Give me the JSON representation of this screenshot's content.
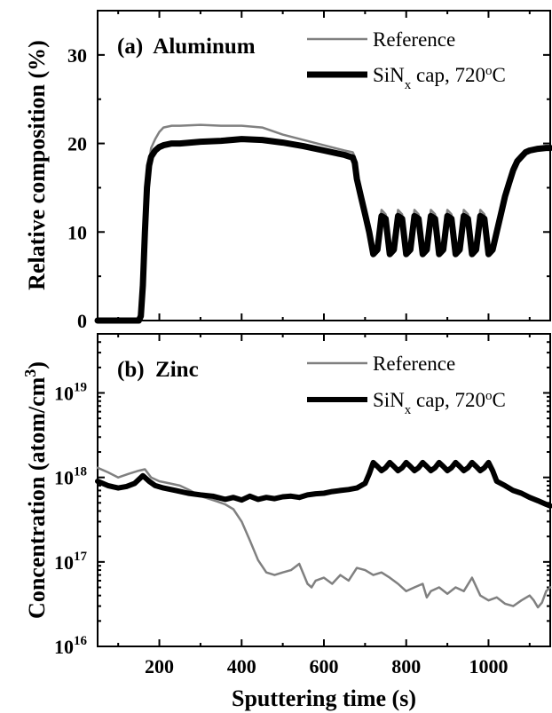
{
  "chart_data": [
    {
      "type": "line",
      "panel_label": "(a)  Aluminum",
      "ylabel": "Relative composition (%)",
      "xlim": [
        50,
        1150
      ],
      "ylim": [
        0,
        35
      ],
      "yscale": "linear",
      "y_ticks": [
        0,
        10,
        20,
        30
      ],
      "y_tick_labels": [
        "0",
        "10",
        "20",
        "30"
      ],
      "legend_position": "top-right",
      "series": [
        {
          "name": "Reference",
          "color": "#808080",
          "x": [
            50,
            100,
            140,
            150,
            155,
            160,
            165,
            170,
            175,
            180,
            190,
            200,
            210,
            230,
            250,
            300,
            350,
            400,
            450,
            500,
            550,
            600,
            650,
            670,
            675,
            680,
            690,
            700,
            710,
            720,
            730,
            740,
            750,
            760,
            770,
            780,
            790,
            800,
            810,
            820,
            830,
            840,
            850,
            860,
            870,
            880,
            890,
            900,
            910,
            920,
            930,
            940,
            950,
            960,
            970,
            980,
            990,
            1000,
            1010,
            1020,
            1030,
            1040,
            1050,
            1060,
            1070,
            1080,
            1090,
            1100,
            1120,
            1140,
            1150
          ],
          "y": [
            0,
            0,
            0,
            0,
            0.5,
            4,
            10,
            15,
            18,
            19.5,
            20.5,
            21.3,
            21.8,
            22,
            22,
            22.1,
            22,
            22,
            21.8,
            21,
            20.4,
            19.8,
            19.2,
            19,
            18.5,
            16,
            14,
            12,
            10,
            8,
            8.5,
            12.5,
            12,
            8,
            8.5,
            12.5,
            12,
            8,
            8.5,
            12.5,
            12,
            8,
            8.5,
            12.5,
            12,
            8,
            8.5,
            12.5,
            12,
            8,
            8.5,
            12.5,
            12,
            8,
            8.5,
            12.5,
            12,
            8,
            8.5,
            10,
            12,
            14,
            15.5,
            17,
            18,
            18.5,
            19,
            19.2,
            19.4,
            19.5,
            19.5
          ]
        },
        {
          "name": "SiNx cap, 720°C",
          "color": "#000000",
          "x": [
            50,
            100,
            140,
            150,
            155,
            160,
            165,
            170,
            175,
            180,
            190,
            200,
            210,
            230,
            250,
            300,
            350,
            400,
            450,
            500,
            550,
            600,
            650,
            670,
            675,
            680,
            690,
            700,
            710,
            720,
            730,
            740,
            750,
            760,
            770,
            780,
            790,
            800,
            810,
            820,
            830,
            840,
            850,
            860,
            870,
            880,
            890,
            900,
            910,
            920,
            930,
            940,
            950,
            960,
            970,
            980,
            990,
            1000,
            1010,
            1020,
            1030,
            1040,
            1050,
            1060,
            1070,
            1080,
            1090,
            1100,
            1120,
            1140,
            1150
          ],
          "y": [
            0,
            0,
            0,
            0,
            0.5,
            4,
            10,
            15,
            17.5,
            18.5,
            19.2,
            19.6,
            19.8,
            20,
            20,
            20.2,
            20.3,
            20.5,
            20.4,
            20.1,
            19.7,
            19.2,
            18.7,
            18.4,
            17.8,
            16,
            14,
            12,
            10,
            7.5,
            8,
            11.8,
            11.5,
            7.5,
            8,
            11.8,
            11.5,
            7.5,
            8,
            11.8,
            11.5,
            7.5,
            8,
            11.8,
            11.5,
            7.5,
            8,
            11.8,
            11.5,
            7.5,
            8,
            11.8,
            11.5,
            7.5,
            8,
            11.8,
            11.5,
            7.5,
            8,
            10,
            12,
            14,
            15.5,
            17,
            18,
            18.5,
            19,
            19.2,
            19.4,
            19.5,
            19.5
          ]
        }
      ]
    },
    {
      "type": "line",
      "panel_label": "(b)  Zinc",
      "xlabel": "Sputtering time (s)",
      "ylabel": "Concentration (atom/cm",
      "ylabel_superscript": "3",
      "ylabel_close": ")",
      "xlim": [
        50,
        1150
      ],
      "ylim": [
        1e+16,
        5e+19
      ],
      "yscale": "log",
      "x_ticks": [
        200,
        400,
        600,
        800,
        1000
      ],
      "x_tick_labels": [
        "200",
        "400",
        "600",
        "800",
        "1000"
      ],
      "y_ticks": [
        1e+16,
        1e+17,
        1e+18,
        1e+19
      ],
      "y_tick_labels": [
        {
          "base": "10",
          "exp": "16"
        },
        {
          "base": "10",
          "exp": "17"
        },
        {
          "base": "10",
          "exp": "18"
        },
        {
          "base": "10",
          "exp": "19"
        }
      ],
      "legend_position": "top-right",
      "series": [
        {
          "name": "Reference",
          "color": "#808080",
          "x": [
            50,
            75,
            100,
            125,
            150,
            165,
            180,
            200,
            225,
            250,
            275,
            300,
            325,
            340,
            360,
            380,
            400,
            420,
            440,
            460,
            480,
            500,
            520,
            540,
            560,
            570,
            580,
            600,
            620,
            640,
            660,
            680,
            700,
            720,
            740,
            760,
            780,
            800,
            820,
            840,
            850,
            860,
            880,
            900,
            920,
            940,
            960,
            980,
            1000,
            1020,
            1040,
            1060,
            1080,
            1100,
            1110,
            1120,
            1130,
            1140,
            1150
          ],
          "y": [
            1.3e+18,
            1.15e+18,
            1e+18,
            1.1e+18,
            1.2e+18,
            1.25e+18,
            1e+18,
            9e+17,
            8.5e+17,
            8e+17,
            7e+17,
            6e+17,
            5.5e+17,
            5.2e+17,
            4.8e+17,
            4.2e+17,
            3e+17,
            1.8e+17,
            1.05e+17,
            7.5e+16,
            7e+16,
            7.5e+16,
            8e+16,
            9.5e+16,
            5.5e+16,
            5e+16,
            6e+16,
            6.5e+16,
            5.5e+16,
            7e+16,
            6e+16,
            8.5e+16,
            8e+16,
            7e+16,
            7.5e+16,
            6.5e+16,
            5.5e+16,
            4.5e+16,
            5e+16,
            5.5e+16,
            3.8e+16,
            4.5e+16,
            5e+16,
            4.2e+16,
            5e+16,
            4.5e+16,
            6.5e+16,
            4e+16,
            3.5e+16,
            3.8e+16,
            3.2e+16,
            3e+16,
            3.5e+16,
            4e+16,
            3.5e+16,
            2.9e+16,
            3.3e+16,
            4.5e+16,
            5e+16
          ]
        },
        {
          "name": "SiNx cap, 720°C",
          "color": "#000000",
          "x": [
            50,
            75,
            100,
            120,
            140,
            160,
            175,
            190,
            210,
            240,
            270,
            300,
            330,
            360,
            380,
            400,
            420,
            440,
            460,
            480,
            500,
            520,
            540,
            560,
            580,
            600,
            620,
            640,
            660,
            680,
            700,
            710,
            720,
            730,
            740,
            750,
            760,
            770,
            780,
            790,
            800,
            810,
            820,
            830,
            840,
            850,
            860,
            870,
            880,
            890,
            900,
            910,
            920,
            930,
            940,
            950,
            960,
            970,
            980,
            990,
            1000,
            1010,
            1020,
            1040,
            1060,
            1080,
            1100,
            1120,
            1140,
            1150
          ],
          "y": [
            9e+17,
            8e+17,
            7.5e+17,
            7.8e+17,
            8.5e+17,
            1.05e+18,
            9e+17,
            8e+17,
            7.5e+17,
            7e+17,
            6.5e+17,
            6.2e+17,
            6e+17,
            5.5e+17,
            5.8e+17,
            5.4e+17,
            6e+17,
            5.5e+17,
            5.8e+17,
            5.6e+17,
            5.9e+17,
            6e+17,
            5.8e+17,
            6.2e+17,
            6.4e+17,
            6.5e+17,
            6.8e+17,
            7e+17,
            7.2e+17,
            7.5e+17,
            8.5e+17,
            1.1e+18,
            1.5e+18,
            1.35e+18,
            1.2e+18,
            1.3e+18,
            1.5e+18,
            1.35e+18,
            1.2e+18,
            1.3e+18,
            1.5e+18,
            1.35e+18,
            1.2e+18,
            1.3e+18,
            1.5e+18,
            1.35e+18,
            1.2e+18,
            1.3e+18,
            1.5e+18,
            1.35e+18,
            1.2e+18,
            1.3e+18,
            1.5e+18,
            1.35e+18,
            1.2e+18,
            1.3e+18,
            1.5e+18,
            1.35e+18,
            1.2e+18,
            1.3e+18,
            1.5e+18,
            1.2e+18,
            9e+17,
            8e+17,
            7e+17,
            6.5e+17,
            5.8e+17,
            5.3e+17,
            4.8e+17,
            4.6e+17
          ]
        }
      ]
    }
  ]
}
